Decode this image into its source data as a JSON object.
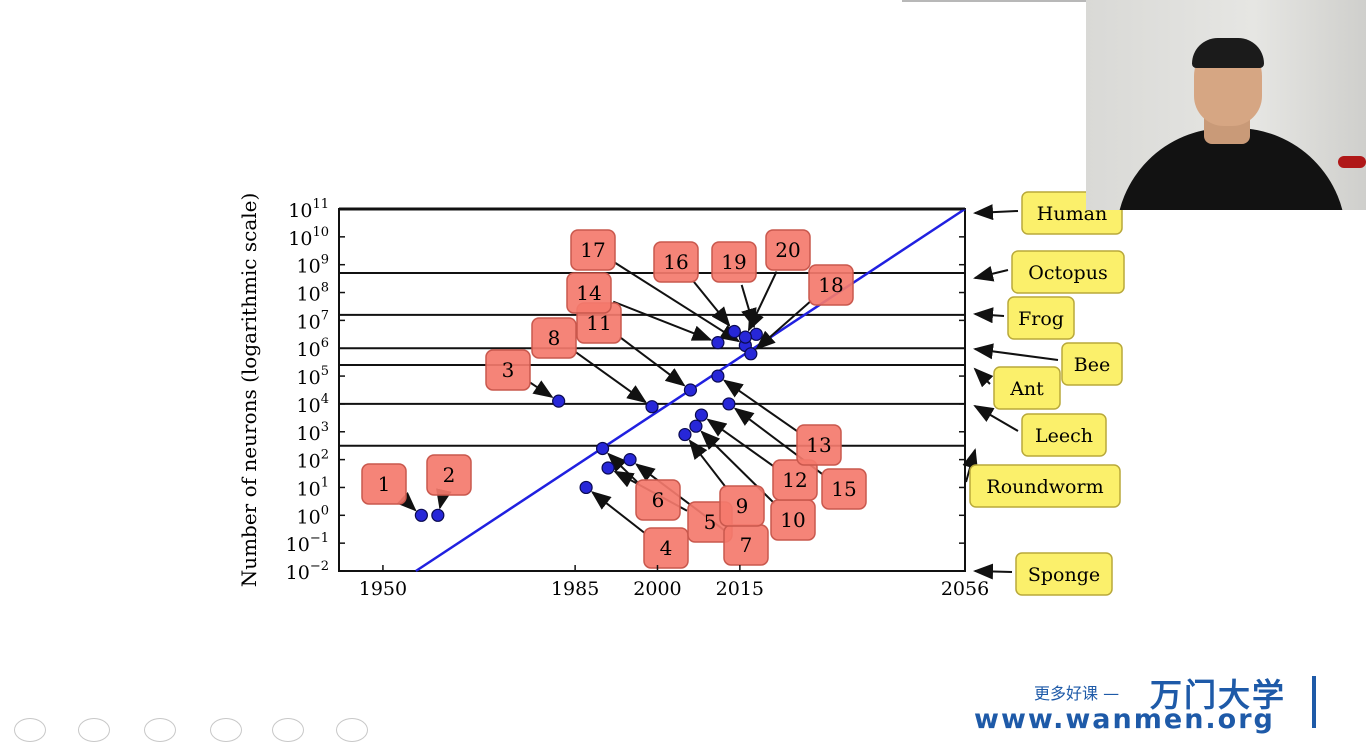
{
  "chart_data": {
    "type": "scatter",
    "ylabel": "Number of neurons (logarithmic scale)",
    "xlabel": "",
    "yscale": "log",
    "xlim": [
      1942,
      2056
    ],
    "ylim_exponent": [
      -2,
      11
    ],
    "xticks": [
      "1950",
      "1985",
      "2000",
      "2015",
      "2056"
    ],
    "xtick_values": [
      1950,
      1985,
      2000,
      2015,
      2056
    ],
    "yticks": [
      {
        "base": "10",
        "exp": "11"
      },
      {
        "base": "10",
        "exp": "10"
      },
      {
        "base": "10",
        "exp": "9"
      },
      {
        "base": "10",
        "exp": "8"
      },
      {
        "base": "10",
        "exp": "7"
      },
      {
        "base": "10",
        "exp": "6"
      },
      {
        "base": "10",
        "exp": "5"
      },
      {
        "base": "10",
        "exp": "4"
      },
      {
        "base": "10",
        "exp": "3"
      },
      {
        "base": "10",
        "exp": "2"
      },
      {
        "base": "10",
        "exp": "1"
      },
      {
        "base": "10",
        "exp": "0"
      },
      {
        "base": "10",
        "exp": "−1"
      },
      {
        "base": "10",
        "exp": "−2"
      }
    ],
    "ytick_exponents": [
      11,
      10,
      9,
      8,
      7,
      6,
      5,
      4,
      3,
      2,
      1,
      0,
      -1,
      -2
    ],
    "trend_line": {
      "from": [
        1956,
        -2
      ],
      "to": [
        2056,
        11
      ],
      "color": "#2020e0"
    },
    "reference_lines": [
      {
        "label": "Human",
        "exponent": 11
      },
      {
        "label": "Octopus",
        "exponent": 8.7
      },
      {
        "label": "Frog",
        "exponent": 7.2
      },
      {
        "label": "Bee",
        "exponent": 6.0
      },
      {
        "label": "Ant",
        "exponent": 5.4
      },
      {
        "label": "Leech",
        "exponent": 4.0
      },
      {
        "label": "Roundworm",
        "exponent": 2.5
      },
      {
        "label": "Sponge",
        "exponent": -2
      }
    ],
    "points": [
      {
        "id": "1",
        "x": 1957,
        "y": 0.0
      },
      {
        "id": "2",
        "x": 1960,
        "y": 0.0
      },
      {
        "id": "3",
        "x": 1982,
        "y": 4.1
      },
      {
        "id": "4",
        "x": 1987,
        "y": 1.0
      },
      {
        "id": "5",
        "x": 1991,
        "y": 1.7
      },
      {
        "id": "6",
        "x": 1990,
        "y": 2.4
      },
      {
        "id": "7",
        "x": 1995,
        "y": 2.0
      },
      {
        "id": "8",
        "x": 1999,
        "y": 3.9
      },
      {
        "id": "9",
        "x": 2005,
        "y": 2.9
      },
      {
        "id": "10",
        "x": 2007,
        "y": 3.2
      },
      {
        "id": "11",
        "x": 2006,
        "y": 4.5
      },
      {
        "id": "12",
        "x": 2008,
        "y": 3.6
      },
      {
        "id": "13",
        "x": 2011,
        "y": 5.0
      },
      {
        "id": "14",
        "x": 2011,
        "y": 6.2
      },
      {
        "id": "15",
        "x": 2013,
        "y": 4.0
      },
      {
        "id": "16",
        "x": 2014,
        "y": 6.6
      },
      {
        "id": "17",
        "x": 2016,
        "y": 6.1
      },
      {
        "id": "18",
        "x": 2017,
        "y": 5.8
      },
      {
        "id": "19",
        "x": 2018,
        "y": 6.5
      },
      {
        "id": "20",
        "x": 2016,
        "y": 6.4
      }
    ],
    "colors": {
      "points": "#2727d8",
      "label_box": "#f4796d",
      "animal_box": "#fbf06b"
    }
  },
  "branding": {
    "tagline": "更多好课 —",
    "name": "万门大学",
    "url": "www.wanmen.org"
  }
}
